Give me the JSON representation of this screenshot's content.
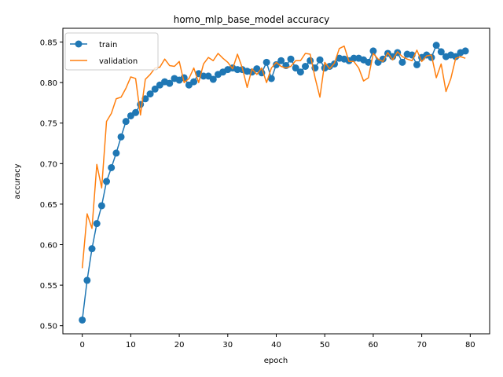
{
  "chart_data": {
    "type": "line",
    "title": "homo_mlp_base_model accuracy",
    "xlabel": "epoch",
    "ylabel": "accuracy",
    "xlim": [
      -4,
      84
    ],
    "ylim": [
      0.49,
      0.867
    ],
    "xticks": [
      0,
      10,
      20,
      30,
      40,
      50,
      60,
      70,
      80
    ],
    "yticks": [
      0.5,
      0.55,
      0.6,
      0.65,
      0.7,
      0.75,
      0.8,
      0.85
    ],
    "grid": false,
    "legend_position": "top-left",
    "series": [
      {
        "name": "train",
        "color": "#1f77b4",
        "marker": "circle",
        "values": [
          0.507,
          0.556,
          0.595,
          0.626,
          0.648,
          0.678,
          0.695,
          0.713,
          0.733,
          0.752,
          0.759,
          0.763,
          0.773,
          0.78,
          0.786,
          0.792,
          0.797,
          0.801,
          0.799,
          0.805,
          0.803,
          0.806,
          0.797,
          0.801,
          0.811,
          0.808,
          0.808,
          0.804,
          0.81,
          0.813,
          0.816,
          0.818,
          0.816,
          0.816,
          0.814,
          0.813,
          0.817,
          0.812,
          0.825,
          0.805,
          0.822,
          0.827,
          0.821,
          0.829,
          0.818,
          0.813,
          0.82,
          0.827,
          0.818,
          0.828,
          0.818,
          0.82,
          0.823,
          0.83,
          0.829,
          0.827,
          0.83,
          0.83,
          0.828,
          0.825,
          0.839,
          0.825,
          0.829,
          0.836,
          0.832,
          0.837,
          0.825,
          0.835,
          0.834,
          0.822,
          0.831,
          0.834,
          0.831,
          0.846,
          0.838,
          0.832,
          0.834,
          0.832,
          0.837,
          0.839
        ]
      },
      {
        "name": "validation",
        "color": "#ff7f0e",
        "marker": "none",
        "values": [
          0.571,
          0.638,
          0.62,
          0.699,
          0.67,
          0.752,
          0.762,
          0.78,
          0.782,
          0.793,
          0.807,
          0.805,
          0.76,
          0.804,
          0.81,
          0.818,
          0.819,
          0.829,
          0.821,
          0.82,
          0.826,
          0.8,
          0.805,
          0.818,
          0.8,
          0.823,
          0.831,
          0.827,
          0.836,
          0.83,
          0.825,
          0.817,
          0.835,
          0.818,
          0.794,
          0.817,
          0.81,
          0.818,
          0.8,
          0.818,
          0.825,
          0.82,
          0.818,
          0.82,
          0.827,
          0.827,
          0.836,
          0.835,
          0.806,
          0.782,
          0.825,
          0.817,
          0.824,
          0.842,
          0.845,
          0.826,
          0.826,
          0.818,
          0.802,
          0.806,
          0.836,
          0.829,
          0.826,
          0.837,
          0.828,
          0.838,
          0.832,
          0.829,
          0.827,
          0.84,
          0.826,
          0.833,
          0.834,
          0.806,
          0.823,
          0.789,
          0.805,
          0.83,
          0.832,
          0.83
        ]
      }
    ]
  }
}
